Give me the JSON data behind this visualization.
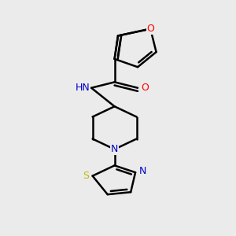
{
  "bg_color": "#ebebeb",
  "atom_colors": {
    "C": "#000000",
    "N": "#0000cc",
    "O": "#ff0000",
    "S": "#bbbb00",
    "H": "#607070"
  },
  "bond_color": "#000000",
  "bond_width": 1.8,
  "figsize": [
    3.0,
    3.0
  ],
  "dpi": 100
}
